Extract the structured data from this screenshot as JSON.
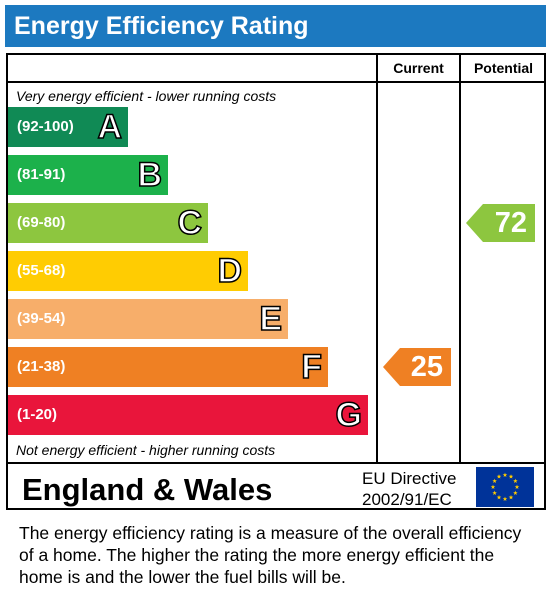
{
  "title": "Energy Efficiency Rating",
  "columns": {
    "current": "Current",
    "potential": "Potential"
  },
  "top_note": "Very energy efficient - lower running costs",
  "bottom_note": "Not energy efficient - higher running costs",
  "region": "England & Wales",
  "directive_line1": "EU Directive",
  "directive_line2": "2002/91/EC",
  "footer": "The energy efficiency rating is a measure of the overall efficiency of a home.  The higher the rating the more energy efficient the home is and the lower the fuel bills will be.",
  "chart_data": {
    "type": "bar",
    "bands": [
      {
        "letter": "A",
        "range": "(92-100)",
        "color": "#108a55"
      },
      {
        "letter": "B",
        "range": "(81-91)",
        "color": "#1cb14b"
      },
      {
        "letter": "C",
        "range": "(69-80)",
        "color": "#8dc63f"
      },
      {
        "letter": "D",
        "range": "(55-68)",
        "color": "#ffcc02"
      },
      {
        "letter": "E",
        "range": "(39-54)",
        "color": "#f7ae6a"
      },
      {
        "letter": "F",
        "range": "(21-38)",
        "color": "#ef8023"
      },
      {
        "letter": "G",
        "range": "(1-20)",
        "color": "#e9153b"
      }
    ],
    "current": {
      "value": 25,
      "band": "F",
      "color": "#ef8023"
    },
    "potential": {
      "value": 72,
      "band": "C",
      "color": "#8dc63f"
    }
  }
}
